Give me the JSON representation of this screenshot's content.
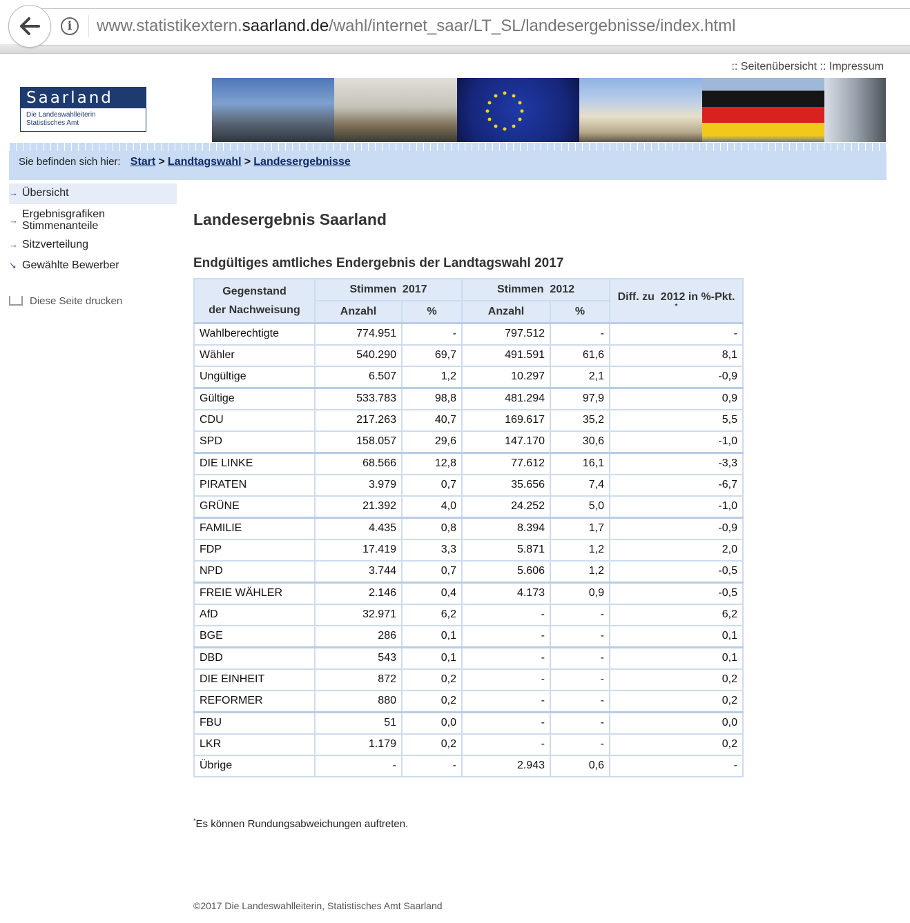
{
  "browser": {
    "url_prefix": "www.statistikextern.",
    "url_host": "saarland.de",
    "url_path": "/wahl/internet_saar/LT_SL/landesergebnisse/index.html"
  },
  "header": {
    "link_prefix": "::",
    "links": [
      "Seitenübersicht",
      "Impressum"
    ],
    "logo_title": "Saarland",
    "logo_line1": "Die Landeswahlleiterin",
    "logo_line2": "Statistisches Amt"
  },
  "breadcrumb": {
    "label": "Sie befinden sich hier:",
    "items": [
      "Start",
      "Landtagswahl",
      "Landesergebnisse"
    ],
    "separator": ">"
  },
  "sidebar": {
    "items": [
      {
        "line1": "Übersicht",
        "line2": ""
      },
      {
        "line1": "Ergebnisgrafiken",
        "line2": "Stimmenanteile"
      },
      {
        "line1": "Sitzverteilung",
        "line2": ""
      },
      {
        "line1": "Gewählte Bewerber",
        "line2": ""
      }
    ],
    "print_label": "Diese Seite drucken"
  },
  "main": {
    "title": "Landesergebnis Saarland",
    "subtitle": "Endgültiges amtliches Endergebnis der Landtagswahl 2017"
  },
  "table": {
    "head": {
      "subject_1": "Gegenstand",
      "subject_2": "der Nachweisung",
      "votes_2017": "Stimmen  2017",
      "votes_2012": "Stimmen  2012",
      "diff": "Diff. zu  2012 in %-Pkt.",
      "diff_mark": "*",
      "count": "Anzahl",
      "pct": "%"
    },
    "rows": [
      [
        "Wahlberechtigte",
        "774.951",
        "-",
        "797.512",
        "-",
        "-"
      ],
      [
        "Wähler",
        "540.290",
        "69,7",
        "491.591",
        "61,6",
        "8,1"
      ],
      [
        "Ungültige",
        "6.507",
        "1,2",
        "10.297",
        "2,1",
        "-0,9"
      ],
      [
        "Gültige",
        "533.783",
        "98,8",
        "481.294",
        "97,9",
        "0,9"
      ],
      [
        "CDU",
        "217.263",
        "40,7",
        "169.617",
        "35,2",
        "5,5"
      ],
      [
        "SPD",
        "158.057",
        "29,6",
        "147.170",
        "30,6",
        "-1,0"
      ],
      [
        "DIE LINKE",
        "68.566",
        "12,8",
        "77.612",
        "16,1",
        "-3,3"
      ],
      [
        "PIRATEN",
        "3.979",
        "0,7",
        "35.656",
        "7,4",
        "-6,7"
      ],
      [
        "GRÜNE",
        "21.392",
        "4,0",
        "24.252",
        "5,0",
        "-1,0"
      ],
      [
        "FAMILIE",
        "4.435",
        "0,8",
        "8.394",
        "1,7",
        "-0,9"
      ],
      [
        "FDP",
        "17.419",
        "3,3",
        "5.871",
        "1,2",
        "2,0"
      ],
      [
        "NPD",
        "3.744",
        "0,7",
        "5.606",
        "1,2",
        "-0,5"
      ],
      [
        "FREIE WÄHLER",
        "2.146",
        "0,4",
        "4.173",
        "0,9",
        "-0,5"
      ],
      [
        "AfD",
        "32.971",
        "6,2",
        "-",
        "-",
        "6,2"
      ],
      [
        "BGE",
        "286",
        "0,1",
        "-",
        "-",
        "0,1"
      ],
      [
        "DBD",
        "543",
        "0,1",
        "-",
        "-",
        "0,1"
      ],
      [
        "DIE EINHEIT",
        "872",
        "0,2",
        "-",
        "-",
        "0,2"
      ],
      [
        "REFORMER",
        "880",
        "0,2",
        "-",
        "-",
        "0,2"
      ],
      [
        "FBU",
        "51",
        "0,0",
        "-",
        "-",
        "0,0"
      ],
      [
        "LKR",
        "1.179",
        "0,2",
        "-",
        "-",
        "0,2"
      ],
      [
        "Übrige",
        "-",
        "-",
        "2.943",
        "0,6",
        "-"
      ]
    ]
  },
  "footnote": {
    "mark": "*",
    "text": "Es können Rundungsabweichungen auftreten."
  },
  "footer": {
    "copyright": "©2017 Die Landeswahlleiterin, Statistisches Amt Saarland"
  }
}
